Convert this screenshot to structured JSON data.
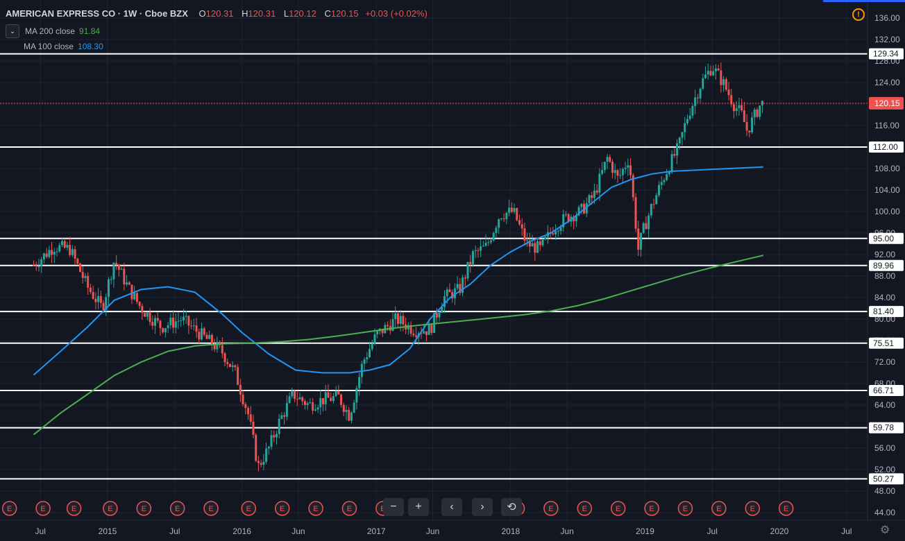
{
  "header": {
    "symbol": "AMERICAN EXPRESS CO · 1W · Cboe BZX",
    "open_k": "O",
    "open_v": "120.31",
    "high_k": "H",
    "high_v": "120.31",
    "low_k": "L",
    "low_v": "120.12",
    "close_k": "C",
    "close_v": "120.15",
    "change": "+0.03 (+0.02%)"
  },
  "indicators": [
    {
      "label": "MA 200 close",
      "value": "91.84",
      "color": "#4caf50"
    },
    {
      "label": "MA 100 close",
      "value": "108.30",
      "color": "#2196f3"
    }
  ],
  "warning_icon": "warning-icon",
  "navigation": {
    "zoom_out": "−",
    "zoom_in": "+",
    "scroll_left": "‹",
    "scroll_right": "›",
    "reset": "⟲"
  },
  "settings_icon": "gear-icon",
  "colors": {
    "background": "#131722",
    "up": "#26a69a",
    "down": "#ef5350",
    "ma200": "#4caf50",
    "ma100": "#2196f3",
    "level_line": "#ffffff",
    "earnings_badge": "#ef5350",
    "price_tag": "#ef5350"
  },
  "chart_data": {
    "type": "candlestick",
    "timeframe": "1W",
    "x_tick_labels": [
      "Jul",
      "2015",
      "Jul",
      "2016",
      "Jun",
      "2017",
      "Jun",
      "2018",
      "Jun",
      "2019",
      "Jul",
      "2020",
      "Jul"
    ],
    "y_tick_labels": [
      "44.00",
      "48.00",
      "52.00",
      "56.00",
      "60.00",
      "64.00",
      "68.00",
      "72.00",
      "76.00",
      "80.00",
      "84.00",
      "88.00",
      "92.00",
      "96.00",
      "100.00",
      "104.00",
      "108.00",
      "112.00",
      "116.00",
      "120.00",
      "124.00",
      "128.00",
      "132.00",
      "136.00"
    ],
    "ylim": [
      42.5,
      138
    ],
    "grid": true,
    "last_price": 120.15,
    "horizontal_levels": [
      129.34,
      112.0,
      95.0,
      89.96,
      81.4,
      75.51,
      66.71,
      59.78,
      50.27
    ],
    "price_path": [
      [
        2014.45,
        90.0
      ],
      [
        2014.6,
        93.5
      ],
      [
        2014.72,
        93.0
      ],
      [
        2014.85,
        86.0
      ],
      [
        2014.96,
        82.0
      ],
      [
        2015.05,
        91.0
      ],
      [
        2015.15,
        86.0
      ],
      [
        2015.25,
        82.0
      ],
      [
        2015.4,
        78.5
      ],
      [
        2015.55,
        80.0
      ],
      [
        2015.7,
        77.0
      ],
      [
        2015.85,
        74.0
      ],
      [
        2015.95,
        70.0
      ],
      [
        2016.05,
        62.0
      ],
      [
        2016.12,
        52.5
      ],
      [
        2016.2,
        56.0
      ],
      [
        2016.28,
        61.0
      ],
      [
        2016.38,
        66.0
      ],
      [
        2016.5,
        64.0
      ],
      [
        2016.6,
        65.0
      ],
      [
        2016.72,
        65.5
      ],
      [
        2016.8,
        62.0
      ],
      [
        2016.9,
        72.0
      ],
      [
        2017.0,
        77.0
      ],
      [
        2017.15,
        80.0
      ],
      [
        2017.28,
        78.0
      ],
      [
        2017.4,
        78.0
      ],
      [
        2017.5,
        84.0
      ],
      [
        2017.62,
        85.5
      ],
      [
        2017.72,
        92.0
      ],
      [
        2017.82,
        93.5
      ],
      [
        2017.92,
        99.5
      ],
      [
        2018.02,
        100.0
      ],
      [
        2018.12,
        94.0
      ],
      [
        2018.22,
        93.0
      ],
      [
        2018.32,
        97.0
      ],
      [
        2018.42,
        99.0
      ],
      [
        2018.52,
        100.0
      ],
      [
        2018.62,
        103.0
      ],
      [
        2018.72,
        110.0
      ],
      [
        2018.8,
        106.0
      ],
      [
        2018.88,
        110.0
      ],
      [
        2018.95,
        93.0
      ],
      [
        2018.98,
        96.0
      ],
      [
        2019.05,
        101.0
      ],
      [
        2019.15,
        107.0
      ],
      [
        2019.25,
        112.0
      ],
      [
        2019.32,
        118.0
      ],
      [
        2019.42,
        124.0
      ],
      [
        2019.5,
        127.0
      ],
      [
        2019.58,
        124.0
      ],
      [
        2019.66,
        120.0
      ],
      [
        2019.72,
        118.0
      ],
      [
        2019.76,
        115.0
      ],
      [
        2019.8,
        117.0
      ],
      [
        2019.86,
        120.0
      ],
      [
        2019.88,
        120.15
      ]
    ],
    "series": [
      {
        "name": "MA 100 close",
        "color": "#2196f3",
        "points": [
          [
            2014.45,
            69.6
          ],
          [
            2014.65,
            74.0
          ],
          [
            2014.85,
            78.5
          ],
          [
            2015.05,
            83.5
          ],
          [
            2015.25,
            85.5
          ],
          [
            2015.45,
            86.0
          ],
          [
            2015.65,
            85.0
          ],
          [
            2015.85,
            81.0
          ],
          [
            2016.0,
            77.5
          ],
          [
            2016.2,
            73.5
          ],
          [
            2016.4,
            70.5
          ],
          [
            2016.6,
            70.0
          ],
          [
            2016.8,
            70.0
          ],
          [
            2016.95,
            70.5
          ],
          [
            2017.1,
            71.5
          ],
          [
            2017.25,
            74.5
          ],
          [
            2017.4,
            80.0
          ],
          [
            2017.55,
            84.0
          ],
          [
            2017.7,
            86.5
          ],
          [
            2017.85,
            90.0
          ],
          [
            2018.0,
            92.5
          ],
          [
            2018.15,
            94.5
          ],
          [
            2018.3,
            96.0
          ],
          [
            2018.45,
            98.5
          ],
          [
            2018.6,
            101.5
          ],
          [
            2018.75,
            104.5
          ],
          [
            2018.9,
            106.0
          ],
          [
            2019.05,
            107.0
          ],
          [
            2019.2,
            107.5
          ],
          [
            2019.88,
            108.3
          ]
        ]
      },
      {
        "name": "MA 200 close",
        "color": "#4caf50",
        "points": [
          [
            2014.45,
            58.5
          ],
          [
            2014.65,
            62.5
          ],
          [
            2014.85,
            66.0
          ],
          [
            2015.05,
            69.5
          ],
          [
            2015.25,
            72.0
          ],
          [
            2015.45,
            74.0
          ],
          [
            2015.65,
            75.0
          ],
          [
            2015.85,
            75.4
          ],
          [
            2016.05,
            75.5
          ],
          [
            2016.3,
            75.8
          ],
          [
            2016.5,
            76.2
          ],
          [
            2016.7,
            76.8
          ],
          [
            2016.9,
            77.5
          ],
          [
            2017.1,
            78.2
          ],
          [
            2017.3,
            78.8
          ],
          [
            2017.5,
            79.3
          ],
          [
            2017.7,
            79.8
          ],
          [
            2017.9,
            80.3
          ],
          [
            2018.1,
            80.8
          ],
          [
            2018.3,
            81.5
          ],
          [
            2018.5,
            82.5
          ],
          [
            2018.7,
            83.8
          ],
          [
            2018.9,
            85.3
          ],
          [
            2019.1,
            86.8
          ],
          [
            2019.3,
            88.3
          ],
          [
            2019.5,
            89.6
          ],
          [
            2019.7,
            90.8
          ],
          [
            2019.88,
            91.84
          ]
        ]
      }
    ],
    "earnings_badge_label": "E"
  }
}
